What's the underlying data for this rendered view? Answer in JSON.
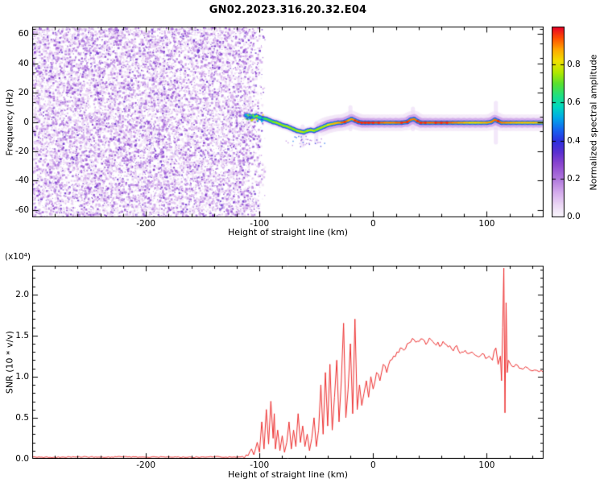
{
  "title": "GN02.2023.316.20.32.E04",
  "colors": {
    "background": "#ffffff",
    "axis": "#000000",
    "snr_line": "#ee2e2e"
  },
  "chart_data": [
    {
      "type": "heatmap",
      "xlabel": "Height of straight line (km)",
      "ylabel": "Frequency (Hz)",
      "xlim": [
        -300,
        150
      ],
      "ylim": [
        -65,
        65
      ],
      "x_ticks": [
        -200,
        -100,
        0,
        100
      ],
      "x_tick_labels": [
        "-200",
        "-100",
        "0",
        "100"
      ],
      "y_ticks": [
        -60,
        -40,
        -20,
        0,
        20,
        40,
        60
      ],
      "y_tick_labels": [
        "-60",
        "-40",
        "-20",
        "0",
        "20",
        "40",
        "60"
      ],
      "colorbar": {
        "label": "Normalized spectral amplitude",
        "range": [
          0,
          1
        ],
        "ticks": [
          0,
          0.2,
          0.4,
          0.6,
          0.8
        ],
        "tick_labels": [
          "0.0",
          "0.2",
          "0.4",
          "0.6",
          "0.8"
        ]
      },
      "colormap_stops": [
        [
          0.0,
          "#faf6fc"
        ],
        [
          0.06,
          "#ecd9f5"
        ],
        [
          0.13,
          "#d4aaec"
        ],
        [
          0.2,
          "#b077dd"
        ],
        [
          0.28,
          "#8b45cf"
        ],
        [
          0.34,
          "#5a2fd0"
        ],
        [
          0.4,
          "#2c2fe0"
        ],
        [
          0.46,
          "#1565f0"
        ],
        [
          0.52,
          "#00a8e8"
        ],
        [
          0.58,
          "#00d8c0"
        ],
        [
          0.64,
          "#20e080"
        ],
        [
          0.7,
          "#58e030"
        ],
        [
          0.76,
          "#b0e800"
        ],
        [
          0.82,
          "#f0e000"
        ],
        [
          0.88,
          "#ffa800"
        ],
        [
          0.94,
          "#ff5000"
        ],
        [
          1.0,
          "#e80028"
        ]
      ],
      "noise_region": {
        "x_min": -300,
        "x_max": -112,
        "fade_to": -95,
        "amp_min": 0.03,
        "amp_max": 0.32
      },
      "smears": [
        {
          "x": -62,
          "f1": -16,
          "f2": -3
        },
        {
          "x": -50,
          "f1": -14,
          "f2": -1
        },
        {
          "x": -20,
          "f1": -5,
          "f2": 10
        },
        {
          "x": 35,
          "f1": -5,
          "f2": 9
        },
        {
          "x": 108,
          "f1": -14,
          "f2": 13
        }
      ],
      "trace": [
        [
          -112,
          4.5,
          0.5
        ],
        [
          -109,
          4,
          0.58
        ],
        [
          -106,
          3.5,
          0.55
        ],
        [
          -103,
          4,
          0.62
        ],
        [
          -100,
          3,
          0.6
        ],
        [
          -97,
          2.5,
          0.66
        ],
        [
          -94,
          2,
          0.7
        ],
        [
          -91,
          1,
          0.68
        ],
        [
          -88,
          0,
          0.72
        ],
        [
          -85,
          -0.5,
          0.74
        ],
        [
          -82,
          -1.5,
          0.76
        ],
        [
          -79,
          -2.5,
          0.72
        ],
        [
          -76,
          -3,
          0.78
        ],
        [
          -73,
          -4,
          0.75
        ],
        [
          -70,
          -5,
          0.72
        ],
        [
          -67,
          -6,
          0.76
        ],
        [
          -64,
          -6.5,
          0.8
        ],
        [
          -61,
          -7,
          0.76
        ],
        [
          -58,
          -6,
          0.72
        ],
        [
          -55,
          -5.5,
          0.8
        ],
        [
          -52,
          -6,
          0.76
        ],
        [
          -49,
          -5,
          0.72
        ],
        [
          -46,
          -4,
          0.78
        ],
        [
          -43,
          -3,
          0.75
        ],
        [
          -40,
          -2,
          0.8
        ],
        [
          -37,
          -1.5,
          0.84
        ],
        [
          -34,
          -1,
          0.88
        ],
        [
          -31,
          -0.5,
          0.85
        ],
        [
          -28,
          -0.5,
          0.92
        ],
        [
          -25,
          0,
          0.95
        ],
        [
          -22,
          1,
          0.9
        ],
        [
          -19,
          2,
          0.87
        ],
        [
          -16,
          1,
          0.93
        ],
        [
          -13,
          0,
          0.96
        ],
        [
          -10,
          -0.5,
          0.97
        ],
        [
          -7,
          -0.5,
          0.95
        ],
        [
          -4,
          -0.5,
          0.97
        ],
        [
          0,
          -0.5,
          0.96
        ],
        [
          5,
          -0.5,
          0.94
        ],
        [
          10,
          -0.5,
          0.92
        ],
        [
          15,
          -0.5,
          0.9
        ],
        [
          20,
          -0.5,
          0.92
        ],
        [
          25,
          -0.5,
          0.94
        ],
        [
          30,
          0,
          0.96
        ],
        [
          33,
          1.5,
          0.92
        ],
        [
          36,
          2,
          0.9
        ],
        [
          39,
          0.5,
          0.94
        ],
        [
          42,
          -0.5,
          0.96
        ],
        [
          46,
          -0.5,
          0.94
        ],
        [
          50,
          -0.5,
          0.92
        ],
        [
          55,
          -0.5,
          0.94
        ],
        [
          60,
          -0.5,
          0.96
        ],
        [
          65,
          -0.5,
          0.94
        ],
        [
          70,
          -0.5,
          0.92
        ],
        [
          75,
          -0.5,
          0.9
        ],
        [
          80,
          -0.5,
          0.88
        ],
        [
          85,
          -0.5,
          0.85
        ],
        [
          90,
          -0.5,
          0.83
        ],
        [
          95,
          -0.5,
          0.86
        ],
        [
          100,
          -0.5,
          0.88
        ],
        [
          104,
          0,
          0.9
        ],
        [
          107,
          1.5,
          0.92
        ],
        [
          110,
          0.5,
          0.94
        ],
        [
          113,
          -0.5,
          0.92
        ],
        [
          117,
          -0.5,
          0.9
        ],
        [
          121,
          -0.5,
          0.89
        ],
        [
          126,
          -0.5,
          0.87
        ],
        [
          131,
          -0.5,
          0.86
        ],
        [
          136,
          -0.5,
          0.86
        ],
        [
          141,
          -0.5,
          0.86
        ],
        [
          146,
          -0.5,
          0.86
        ],
        [
          150,
          -0.5,
          0.86
        ]
      ]
    },
    {
      "type": "line",
      "xlabel": "Height of straight line (km)",
      "ylabel": "SNR (10 * v/v)",
      "y_scale_note": "(x10⁴)",
      "xlim": [
        -300,
        150
      ],
      "ylim": [
        0,
        2.35
      ],
      "x_ticks": [
        -200,
        -100,
        0,
        100
      ],
      "x_tick_labels": [
        "-200",
        "-100",
        "0",
        "100"
      ],
      "y_ticks": [
        0,
        0.5,
        1,
        1.5,
        2
      ],
      "y_tick_labels": [
        "0.0",
        "0.5",
        "1.0",
        "1.5",
        "2.0"
      ],
      "series": [
        {
          "name": "SNR",
          "color": "#ee2e2e",
          "points": [
            [
              -300,
              0.02
            ],
            [
              -280,
              0.02
            ],
            [
              -260,
              0.025
            ],
            [
              -240,
              0.02
            ],
            [
              -220,
              0.025
            ],
            [
              -200,
              0.02
            ],
            [
              -180,
              0.025
            ],
            [
              -160,
              0.02
            ],
            [
              -140,
              0.025
            ],
            [
              -125,
              0.02
            ],
            [
              -115,
              0.03
            ],
            [
              -110,
              0.04
            ],
            [
              -107,
              0.12
            ],
            [
              -105,
              0.05
            ],
            [
              -102,
              0.2
            ],
            [
              -100,
              0.08
            ],
            [
              -98,
              0.45
            ],
            [
              -96,
              0.12
            ],
            [
              -94,
              0.6
            ],
            [
              -92,
              0.18
            ],
            [
              -90,
              0.7
            ],
            [
              -88,
              0.25
            ],
            [
              -87,
              0.55
            ],
            [
              -86,
              0.12
            ],
            [
              -84,
              0.35
            ],
            [
              -82,
              0.1
            ],
            [
              -80,
              0.28
            ],
            [
              -78,
              0.08
            ],
            [
              -76,
              0.2
            ],
            [
              -74,
              0.45
            ],
            [
              -72,
              0.12
            ],
            [
              -70,
              0.35
            ],
            [
              -68,
              0.15
            ],
            [
              -66,
              0.55
            ],
            [
              -64,
              0.2
            ],
            [
              -62,
              0.4
            ],
            [
              -60,
              0.15
            ],
            [
              -58,
              0.3
            ],
            [
              -56,
              0.1
            ],
            [
              -54,
              0.25
            ],
            [
              -52,
              0.5
            ],
            [
              -50,
              0.15
            ],
            [
              -48,
              0.35
            ],
            [
              -46,
              0.9
            ],
            [
              -44,
              0.3
            ],
            [
              -42,
              1.05
            ],
            [
              -40,
              0.4
            ],
            [
              -38,
              1.15
            ],
            [
              -36,
              0.35
            ],
            [
              -34,
              0.75
            ],
            [
              -32,
              1.2
            ],
            [
              -30,
              0.45
            ],
            [
              -28,
              0.95
            ],
            [
              -26,
              1.65
            ],
            [
              -24,
              0.5
            ],
            [
              -22,
              0.85
            ],
            [
              -20,
              1.4
            ],
            [
              -18,
              0.55
            ],
            [
              -16,
              1.7
            ],
            [
              -14,
              0.6
            ],
            [
              -12,
              0.9
            ],
            [
              -10,
              0.65
            ],
            [
              -8,
              0.8
            ],
            [
              -6,
              0.95
            ],
            [
              -4,
              0.75
            ],
            [
              -2,
              1.0
            ],
            [
              0,
              0.85
            ],
            [
              3,
              1.05
            ],
            [
              6,
              0.95
            ],
            [
              9,
              1.15
            ],
            [
              12,
              1.05
            ],
            [
              15,
              1.2
            ],
            [
              18,
              1.25
            ],
            [
              21,
              1.3
            ],
            [
              24,
              1.35
            ],
            [
              27,
              1.32
            ],
            [
              30,
              1.4
            ],
            [
              33,
              1.42
            ],
            [
              36,
              1.45
            ],
            [
              39,
              1.43
            ],
            [
              42,
              1.46
            ],
            [
              45,
              1.44
            ],
            [
              48,
              1.42
            ],
            [
              51,
              1.45
            ],
            [
              54,
              1.4
            ],
            [
              57,
              1.42
            ],
            [
              60,
              1.38
            ],
            [
              63,
              1.4
            ],
            [
              66,
              1.36
            ],
            [
              69,
              1.34
            ],
            [
              72,
              1.36
            ],
            [
              75,
              1.32
            ],
            [
              78,
              1.3
            ],
            [
              81,
              1.32
            ],
            [
              84,
              1.28
            ],
            [
              87,
              1.3
            ],
            [
              90,
              1.26
            ],
            [
              93,
              1.24
            ],
            [
              96,
              1.28
            ],
            [
              99,
              1.22
            ],
            [
              102,
              1.25
            ],
            [
              105,
              1.2
            ],
            [
              108,
              1.35
            ],
            [
              110,
              1.15
            ],
            [
              112,
              1.25
            ],
            [
              113,
              0.95
            ],
            [
              114,
              1.6
            ],
            [
              115,
              2.32
            ],
            [
              116,
              0.56
            ],
            [
              117,
              1.9
            ],
            [
              118,
              1.05
            ],
            [
              119,
              1.2
            ],
            [
              121,
              1.15
            ],
            [
              124,
              1.12
            ],
            [
              127,
              1.14
            ],
            [
              130,
              1.1
            ],
            [
              134,
              1.12
            ],
            [
              138,
              1.08
            ],
            [
              142,
              1.08
            ],
            [
              146,
              1.06
            ],
            [
              150,
              1.05
            ]
          ]
        }
      ]
    }
  ]
}
